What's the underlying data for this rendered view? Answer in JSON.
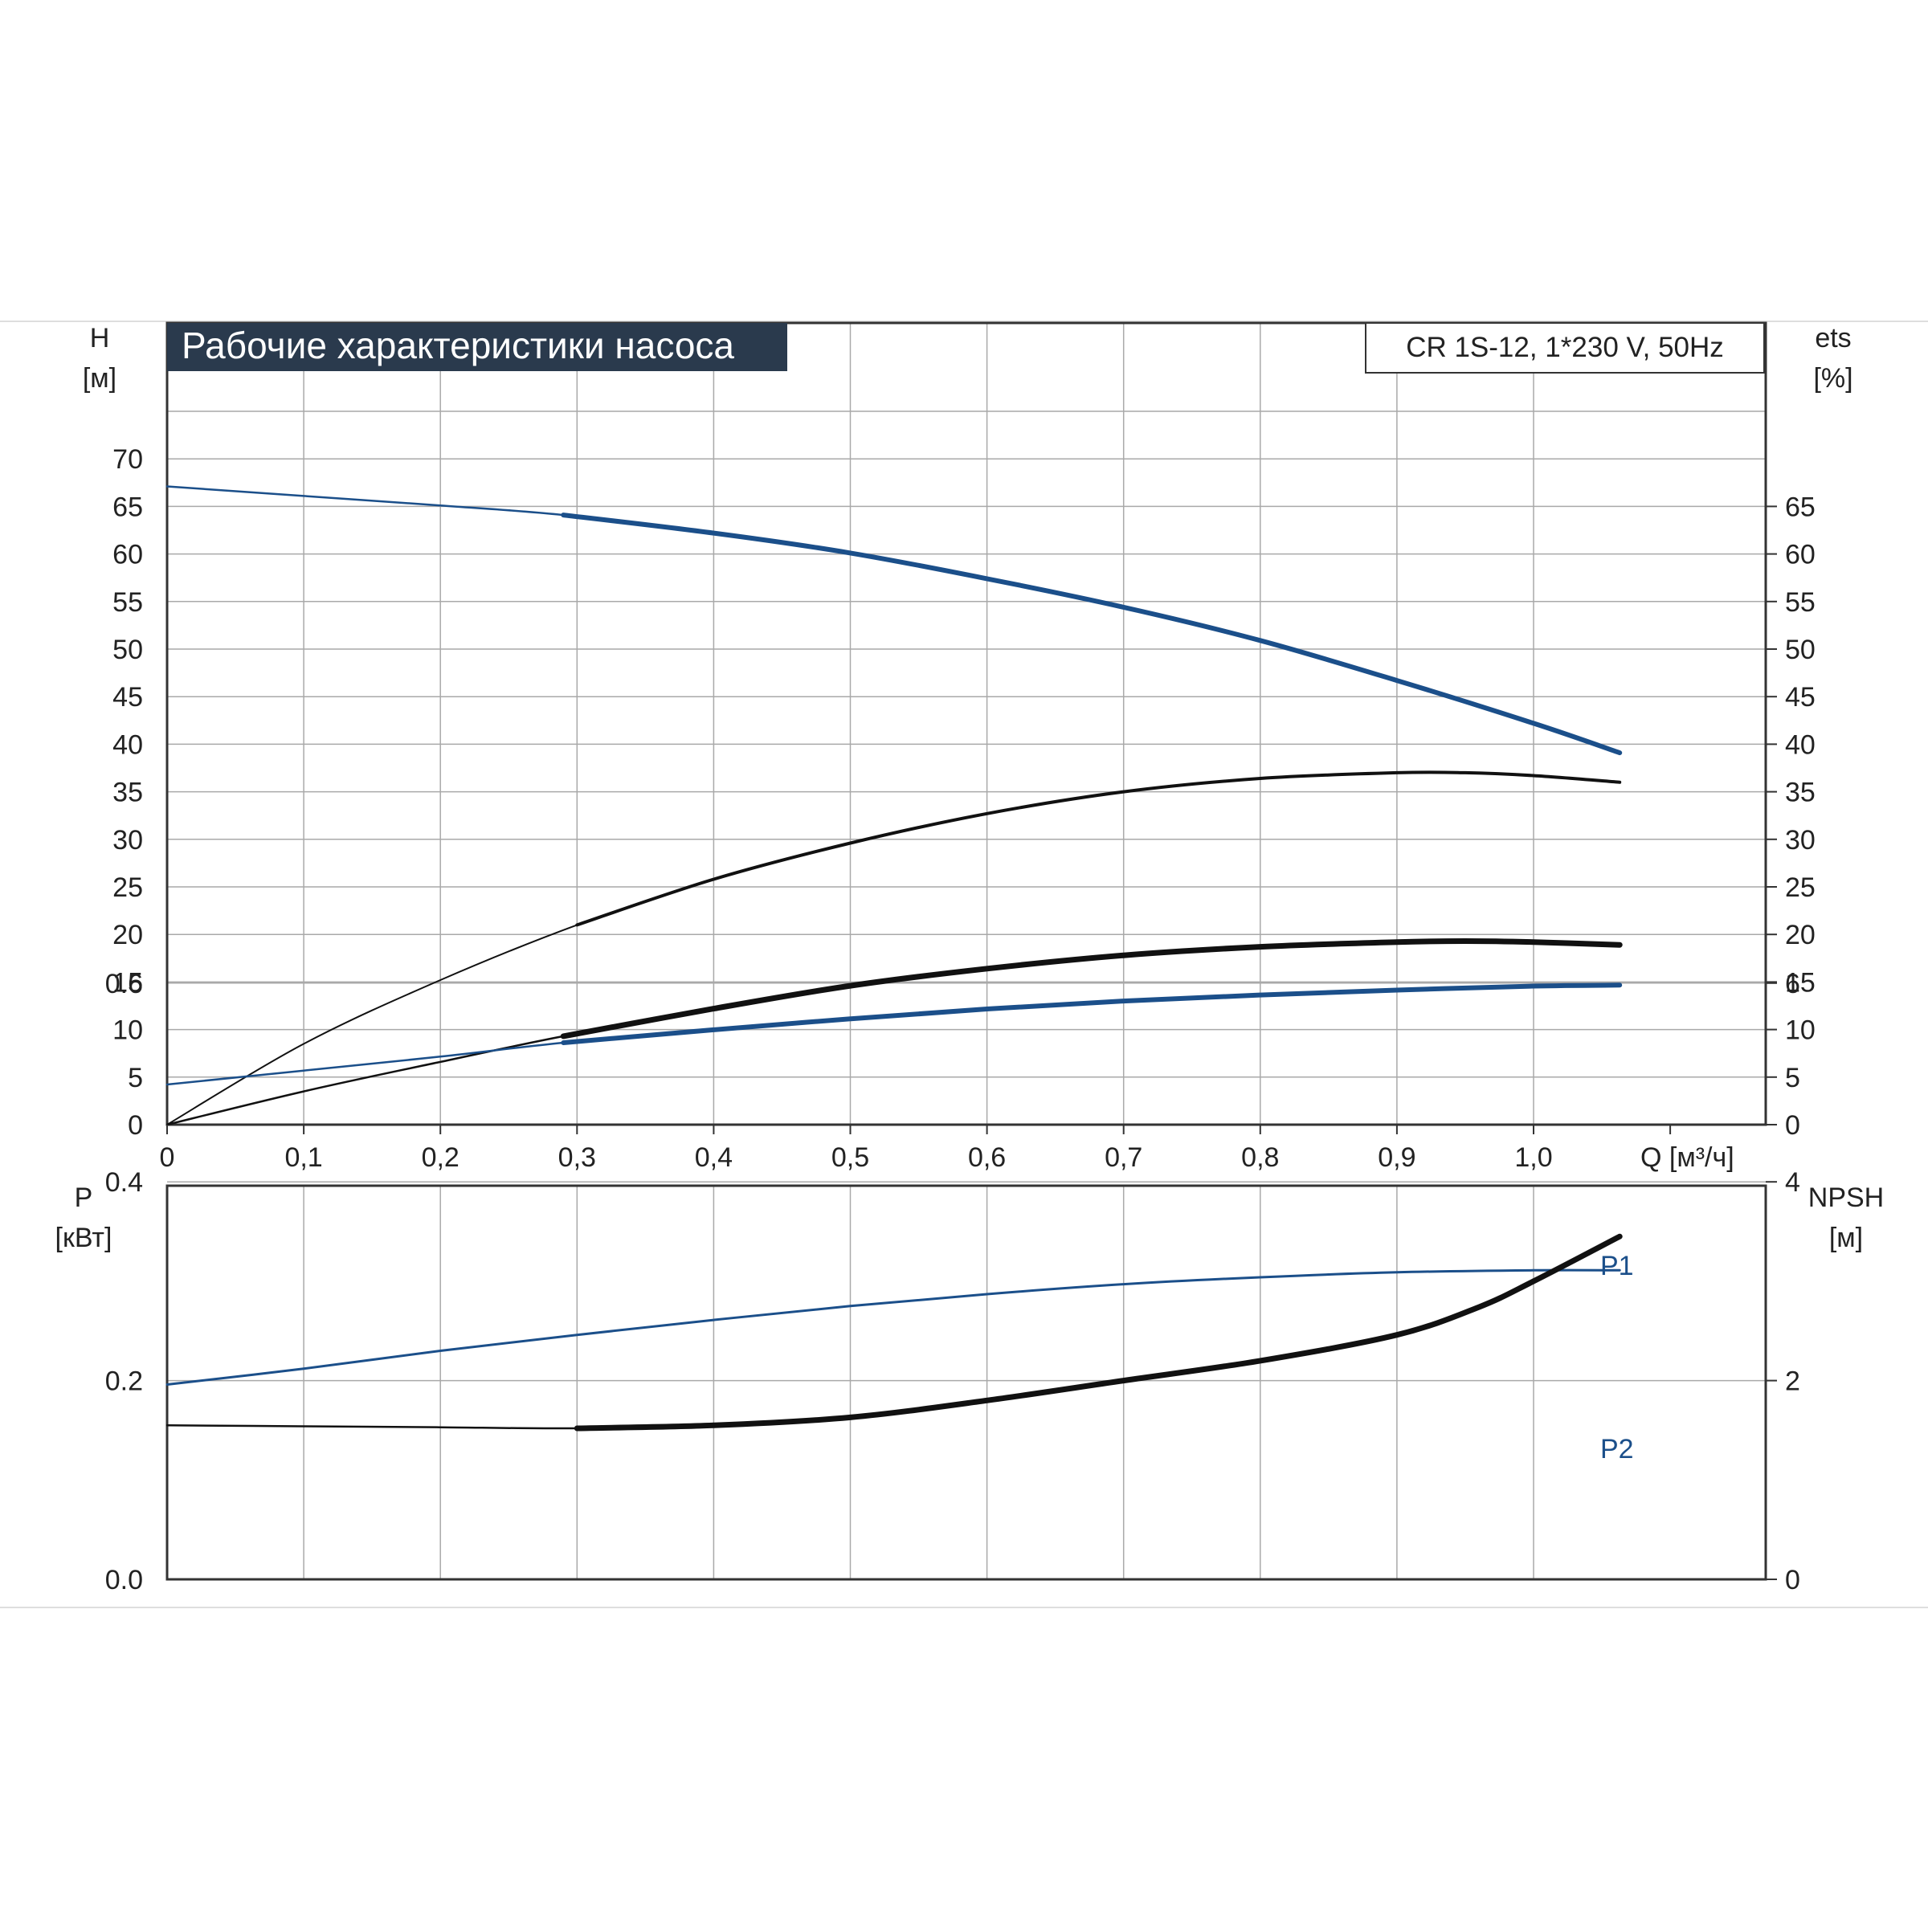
{
  "title": "Рабочие характеристики насоса",
  "model_label": "CR 1S-12, 1*230 V, 50Hz",
  "colors": {
    "blue": "#1b4f8a",
    "black": "#111111",
    "grid": "#a9a9a9",
    "title_bg": "#2a3a4d"
  },
  "chart_data": [
    {
      "type": "line",
      "name": "upper",
      "x_axis": {
        "label": "Q [м³/ч]",
        "range": [
          0,
          1.1
        ],
        "ticks": [
          0,
          0.1,
          0.2,
          0.3,
          0.4,
          0.5,
          0.6,
          0.7,
          0.8,
          0.9,
          1.0
        ],
        "tick_labels": [
          "0",
          "0,1",
          "0,2",
          "0,3",
          "0,4",
          "0,5",
          "0,6",
          "0,7",
          "0,8",
          "0,9",
          "1,0"
        ]
      },
      "y_left": {
        "label": "H",
        "unit": "[м]",
        "range": [
          0,
          70
        ],
        "ticks": [
          0,
          5,
          10,
          15,
          20,
          25,
          30,
          35,
          40,
          45,
          50,
          55,
          60,
          65,
          70
        ]
      },
      "y_right": {
        "label": "ets",
        "unit": "[%]",
        "ticks": [
          0,
          5,
          10,
          15,
          20,
          25,
          30,
          35,
          40,
          45,
          50,
          55,
          60,
          65
        ]
      },
      "grid": true,
      "series": [
        {
          "id": "H",
          "color": "blue",
          "points": [
            [
              0,
              67.1
            ],
            [
              0.1,
              66.1
            ],
            [
              0.2,
              65.1
            ],
            [
              0.29,
              64.1
            ],
            [
              0.4,
              62.2
            ],
            [
              0.5,
              60.1
            ],
            [
              0.6,
              57.4
            ],
            [
              0.7,
              54.4
            ],
            [
              0.8,
              50.9
            ],
            [
              0.9,
              46.7
            ],
            [
              1.0,
              42.2
            ],
            [
              1.063,
              39.1
            ]
          ]
        },
        {
          "id": "eta",
          "color": "black",
          "points": [
            [
              0,
              0
            ],
            [
              0.1,
              8.5
            ],
            [
              0.2,
              15.2
            ],
            [
              0.3,
              21.0
            ],
            [
              0.4,
              25.8
            ],
            [
              0.5,
              29.6
            ],
            [
              0.6,
              32.7
            ],
            [
              0.7,
              35.0
            ],
            [
              0.8,
              36.4
            ],
            [
              0.9,
              37.0
            ],
            [
              0.95,
              37.0
            ],
            [
              1.0,
              36.7
            ],
            [
              1.063,
              36.0
            ]
          ]
        },
        {
          "id": "eta_total",
          "color": "black",
          "points": [
            [
              0,
              0
            ],
            [
              0.1,
              3.5
            ],
            [
              0.2,
              6.6
            ],
            [
              0.29,
              9.3
            ],
            [
              0.4,
              12.2
            ],
            [
              0.5,
              14.6
            ],
            [
              0.6,
              16.4
            ],
            [
              0.7,
              17.8
            ],
            [
              0.8,
              18.7
            ],
            [
              0.9,
              19.2
            ],
            [
              0.95,
              19.3
            ],
            [
              1.0,
              19.2
            ],
            [
              1.063,
              18.9
            ]
          ]
        }
      ]
    },
    {
      "type": "line",
      "name": "lower",
      "x_range": [
        0,
        1.1
      ],
      "y_left": {
        "label": "P",
        "unit": "[кВт]",
        "range": [
          0,
          0.8
        ],
        "ticks": [
          0,
          0.2,
          0.4,
          0.6
        ],
        "tick_labels": [
          "0.0",
          "0.2",
          "0.4",
          "0.6"
        ]
      },
      "y_right": {
        "label": "NPSH",
        "unit": "[м]",
        "range": [
          0,
          8
        ],
        "ticks": [
          0,
          2,
          4,
          6
        ],
        "tick_labels": [
          "0",
          "2",
          "4",
          "6"
        ]
      },
      "grid": true,
      "series": [
        {
          "id": "P1",
          "label": "P1",
          "color": "blue",
          "points": [
            [
              0,
              0.498
            ],
            [
              0.1,
              0.512
            ],
            [
              0.2,
              0.526
            ],
            [
              0.29,
              0.54
            ],
            [
              0.4,
              0.553
            ],
            [
              0.5,
              0.564
            ],
            [
              0.6,
              0.574
            ],
            [
              0.7,
              0.582
            ],
            [
              0.8,
              0.588
            ],
            [
              0.9,
              0.593
            ],
            [
              1.0,
              0.597
            ],
            [
              1.063,
              0.598
            ]
          ]
        },
        {
          "id": "P2",
          "label": "P2",
          "color": "blue",
          "points": [
            [
              0,
              0.196
            ],
            [
              0.1,
              0.212
            ],
            [
              0.2,
              0.23
            ],
            [
              0.3,
              0.246
            ],
            [
              0.4,
              0.261
            ],
            [
              0.5,
              0.275
            ],
            [
              0.6,
              0.287
            ],
            [
              0.7,
              0.297
            ],
            [
              0.8,
              0.304
            ],
            [
              0.9,
              0.309
            ],
            [
              1.0,
              0.311
            ],
            [
              1.063,
              0.311
            ]
          ]
        },
        {
          "id": "NPSH",
          "color": "black",
          "axis": "right",
          "points": [
            [
              0,
              1.55
            ],
            [
              0.1,
              1.54
            ],
            [
              0.2,
              1.53
            ],
            [
              0.3,
              1.52
            ],
            [
              0.4,
              1.55
            ],
            [
              0.5,
              1.63
            ],
            [
              0.6,
              1.8
            ],
            [
              0.7,
              2.0
            ],
            [
              0.8,
              2.2
            ],
            [
              0.9,
              2.46
            ],
            [
              0.96,
              2.74
            ],
            [
              1.0,
              3.0
            ],
            [
              1.063,
              3.45
            ]
          ]
        }
      ]
    }
  ]
}
